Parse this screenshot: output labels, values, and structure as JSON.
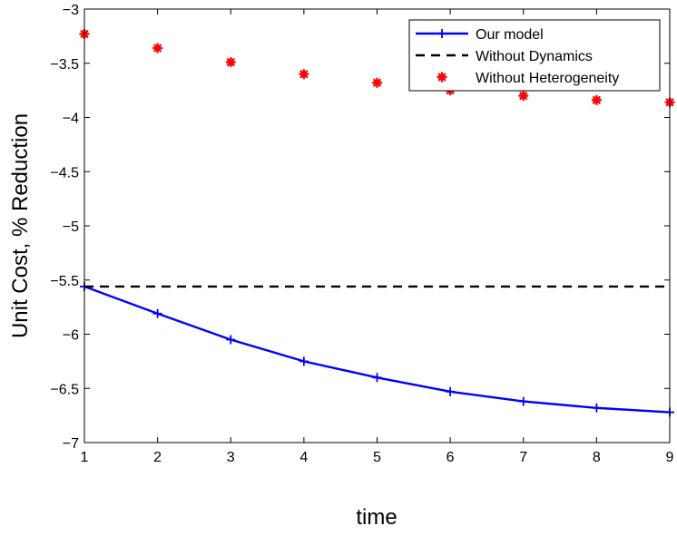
{
  "chart_data": {
    "type": "line",
    "xlabel": "time",
    "ylabel": "Unit Cost, % Reduction",
    "xlim": [
      1,
      9
    ],
    "ylim": [
      -7,
      -3
    ],
    "xticks": [
      1,
      2,
      3,
      4,
      5,
      6,
      7,
      8,
      9
    ],
    "yticks": [
      -7,
      -6.5,
      -6,
      -5.5,
      -5,
      -4.5,
      -4,
      -3.5,
      -3
    ],
    "ytick_labels": [
      "−7",
      "−6.5",
      "−6",
      "−5.5",
      "−5",
      "−4.5",
      "−4",
      "−3.5",
      "−3"
    ],
    "grid": false,
    "legend_position": "top-right",
    "x": [
      1,
      2,
      3,
      4,
      5,
      6,
      7,
      8,
      9
    ],
    "series": [
      {
        "name": "Our model",
        "style": "line-plus",
        "color": "#0000ff",
        "values": [
          -5.56,
          -5.81,
          -6.05,
          -6.25,
          -6.4,
          -6.53,
          -6.62,
          -6.68,
          -6.72
        ]
      },
      {
        "name": "Without Dynamics",
        "style": "dashed",
        "color": "#000000",
        "values": [
          -5.56,
          -5.56,
          -5.56,
          -5.56,
          -5.56,
          -5.56,
          -5.56,
          -5.56,
          -5.56
        ]
      },
      {
        "name": "Without Heterogeneity",
        "style": "asterisk",
        "color": "#ff0000",
        "values": [
          -3.23,
          -3.36,
          -3.49,
          -3.6,
          -3.68,
          -3.75,
          -3.8,
          -3.84,
          -3.86
        ]
      }
    ]
  }
}
